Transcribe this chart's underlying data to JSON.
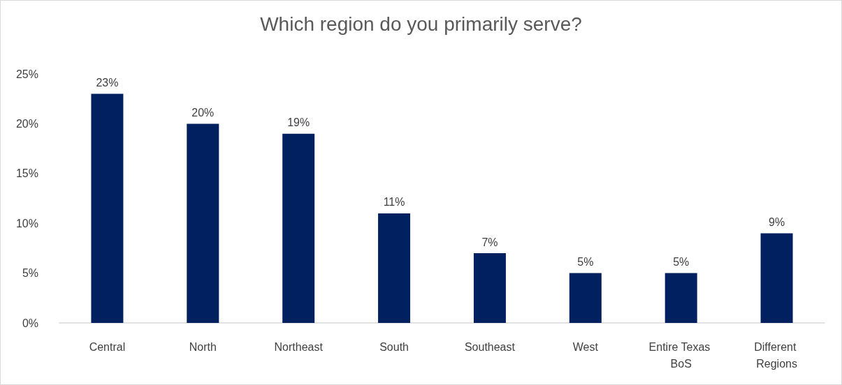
{
  "chart_data": {
    "type": "bar",
    "title": "Which region do you primarily serve?",
    "categories": [
      "Central",
      "North",
      "Northeast",
      "South",
      "Southeast",
      "West",
      "Entire Texas BoS",
      "Different Regions"
    ],
    "values": [
      23,
      20,
      19,
      11,
      7,
      5,
      5,
      9
    ],
    "value_labels": [
      "23%",
      "20%",
      "19%",
      "11%",
      "7%",
      "5%",
      "5%",
      "9%"
    ],
    "color": "#002060",
    "ylim": [
      0,
      25
    ],
    "yticks": [
      {
        "value": 0,
        "label": "0%"
      },
      {
        "value": 5,
        "label": "5%"
      },
      {
        "value": 10,
        "label": "10%"
      },
      {
        "value": 15,
        "label": "15%"
      },
      {
        "value": 20,
        "label": "20%"
      },
      {
        "value": 25,
        "label": "25%"
      }
    ],
    "grid": false
  }
}
